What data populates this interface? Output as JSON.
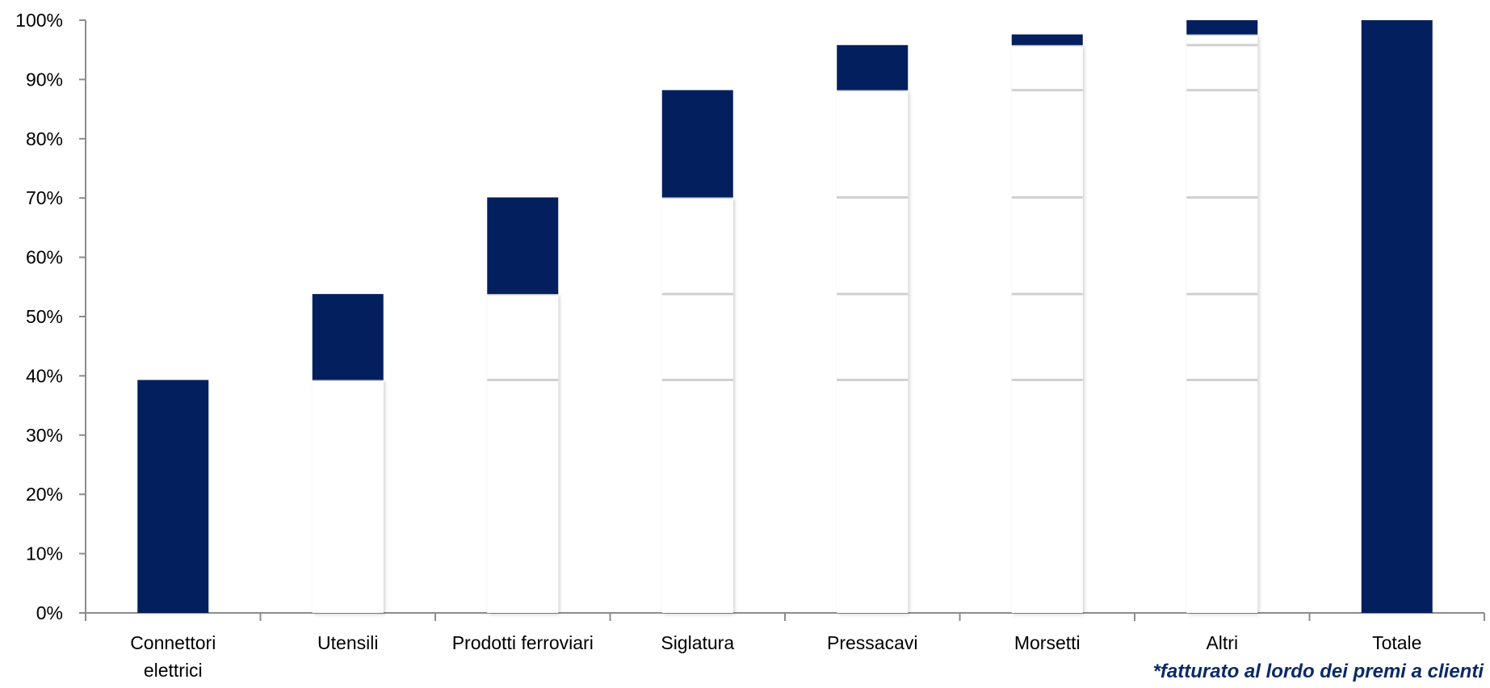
{
  "chart_data": {
    "type": "bar",
    "subtype": "waterfall",
    "title": "",
    "xlabel": "",
    "ylabel": "",
    "ylim": [
      0,
      100
    ],
    "y_ticks": [
      "0%",
      "10%",
      "20%",
      "30%",
      "40%",
      "50%",
      "60%",
      "70%",
      "80%",
      "90%",
      "100%"
    ],
    "categories": [
      [
        "Connettori",
        "elettrici"
      ],
      [
        "Utensili"
      ],
      [
        "Prodotti ferroviari"
      ],
      [
        "Siglatura"
      ],
      [
        "Pressacavi"
      ],
      [
        "Morsetti"
      ],
      [
        "Altri"
      ],
      [
        "Totale"
      ]
    ],
    "series": [
      {
        "role": "base",
        "values": [
          0,
          39.3,
          53.8,
          70.1,
          88.2,
          95.8,
          97.6,
          0
        ]
      },
      {
        "role": "increment",
        "values": [
          39.3,
          14.5,
          16.3,
          18.1,
          7.6,
          1.8,
          2.4,
          100
        ]
      }
    ],
    "grid": false,
    "legend": "none",
    "colors": {
      "bar": "#031f5e",
      "base": "#ffffff",
      "axis": "#8c8c8c"
    }
  },
  "footnote": "*fatturato al lordo dei premi a clienti"
}
